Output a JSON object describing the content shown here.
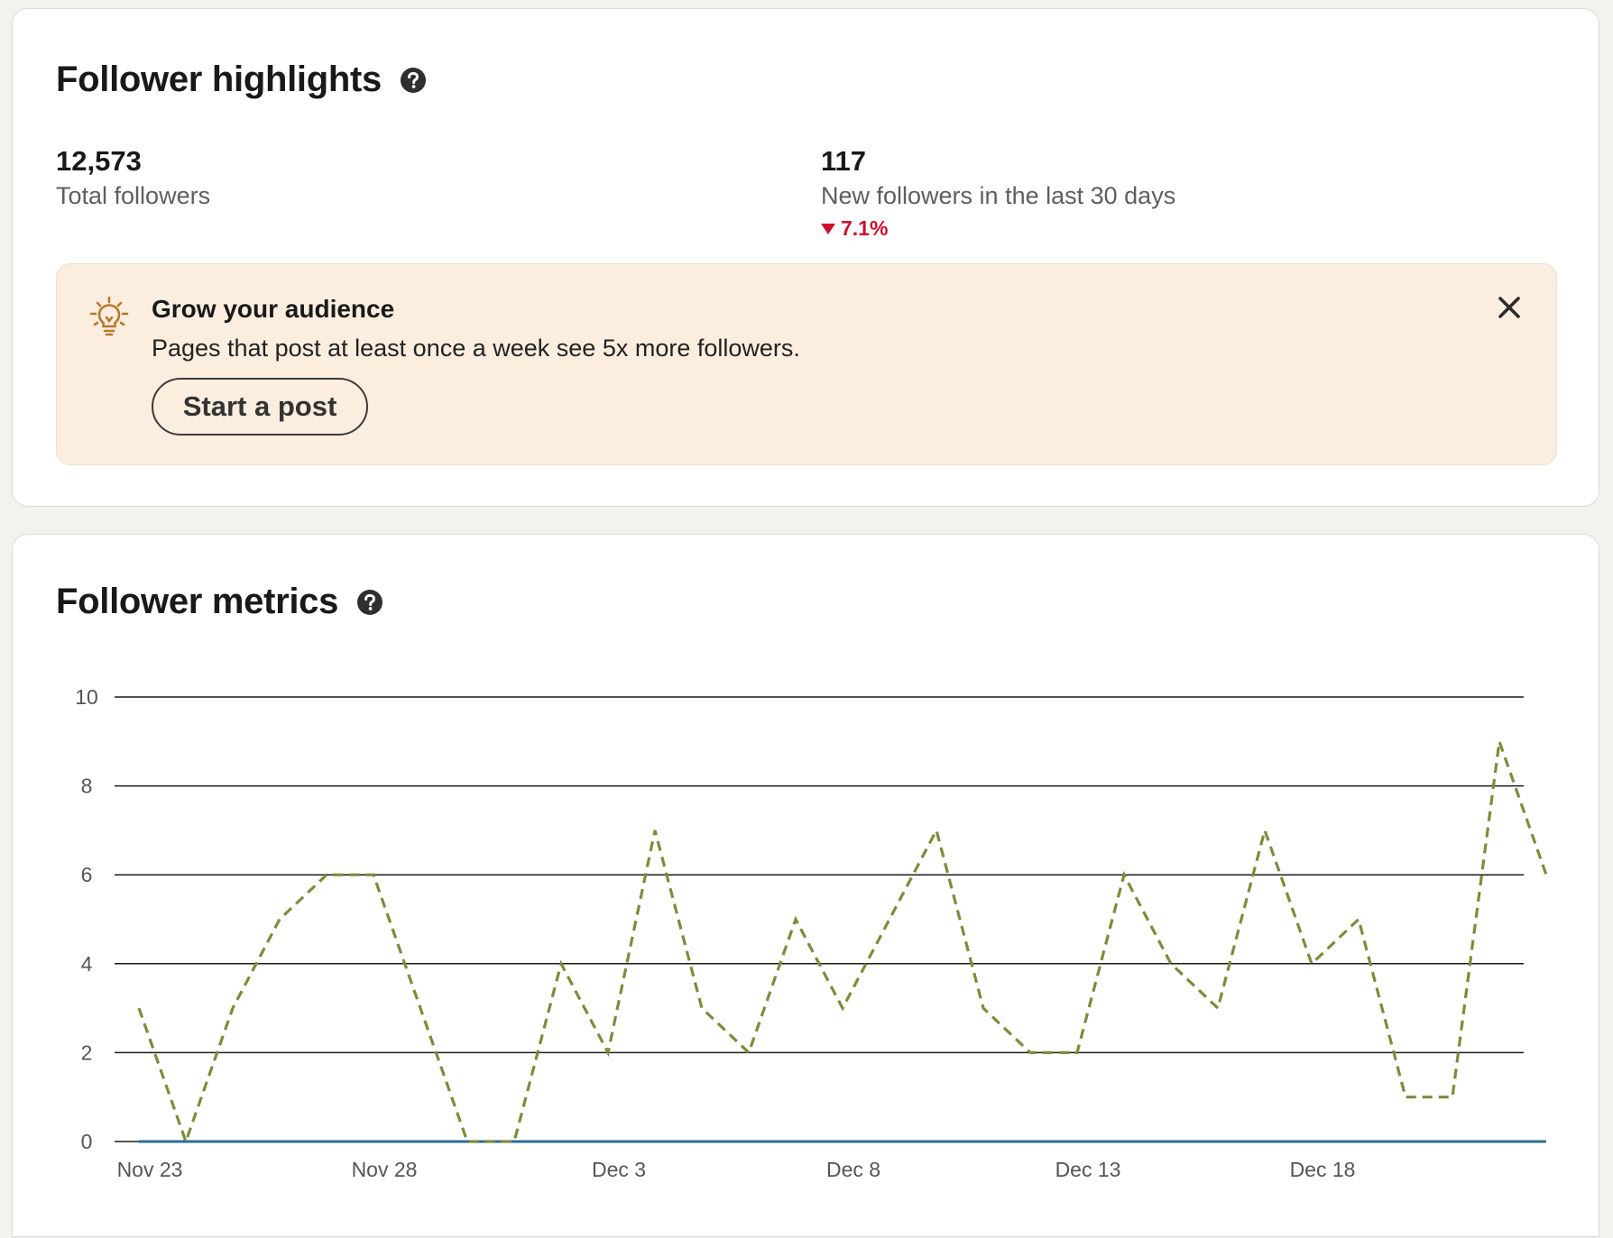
{
  "highlights": {
    "title": "Follower highlights",
    "total": {
      "value": "12,573",
      "label": "Total followers"
    },
    "new": {
      "value": "117",
      "label": "New followers in the last 30 days",
      "change": "7.1%",
      "change_direction": "down"
    }
  },
  "tip": {
    "title": "Grow your audience",
    "text": "Pages that post at least once a week see 5x more followers.",
    "button_label": "Start a post"
  },
  "metrics": {
    "title": "Follower metrics"
  },
  "colors": {
    "negative": "#cb112d",
    "organic_line": "#7d8c3b",
    "sponsored_line": "#2e6b95",
    "tip_background": "#fbeedf",
    "tip_icon": "#b8792c"
  },
  "icons": {
    "help": "help-circle-icon",
    "tip": "lightbulb-icon",
    "close": "close-icon",
    "change": "triangle-down-icon"
  },
  "chart_data": {
    "type": "line",
    "x_tick_labels": [
      "Nov 23",
      "Nov 28",
      "Dec 3",
      "Dec 8",
      "Dec 13",
      "Dec 18"
    ],
    "x_tick_indices": [
      0,
      5,
      10,
      15,
      20,
      25
    ],
    "y_ticks": [
      0,
      2,
      4,
      6,
      8,
      10
    ],
    "ylim": [
      0,
      10
    ],
    "grid": true,
    "series": [
      {
        "style": "dashed",
        "color": "#7d8c3b",
        "values": [
          3,
          0,
          3,
          5,
          6,
          6,
          3,
          0,
          0,
          4,
          2,
          7,
          3,
          2,
          5,
          3,
          5,
          7,
          3,
          2,
          2,
          6,
          4,
          3,
          7,
          4,
          5,
          1,
          1,
          9,
          6
        ]
      },
      {
        "style": "solid",
        "color": "#2e6b95",
        "values": [
          0,
          0,
          0,
          0,
          0,
          0,
          0,
          0,
          0,
          0,
          0,
          0,
          0,
          0,
          0,
          0,
          0,
          0,
          0,
          0,
          0,
          0,
          0,
          0,
          0,
          0,
          0,
          0,
          0,
          0,
          0
        ]
      }
    ]
  }
}
